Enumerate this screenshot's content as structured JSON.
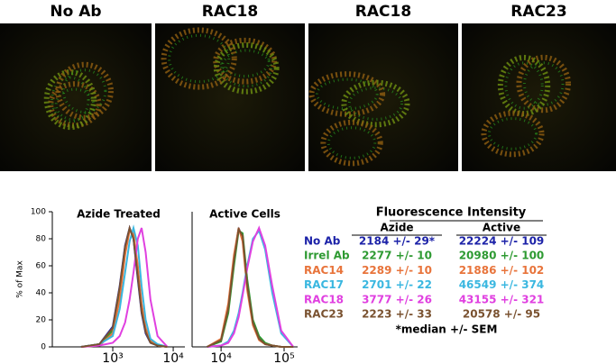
{
  "images": {
    "labels": [
      "No Ab",
      "RAC18",
      "RAC18",
      "RAC23"
    ]
  },
  "chart_data": [
    {
      "type": "line",
      "title": "Azide Treated",
      "ylabel": "% of Max",
      "xscale": "log",
      "x": [
        300,
        600,
        1000,
        1300,
        1600,
        1900,
        2200,
        2600,
        3000,
        3500,
        4200,
        5500,
        8000
      ],
      "xlim": [
        100,
        15600
      ],
      "xticks": [
        {
          "value": 1000,
          "label": "10³"
        },
        {
          "value": 10000,
          "label": "10⁴"
        }
      ],
      "ylim": [
        0,
        100
      ],
      "yticks": [
        0,
        20,
        40,
        60,
        80,
        100
      ],
      "series": [
        {
          "name": "No Ab",
          "color": "#1c22a8",
          "values": [
            0,
            2,
            15,
            45,
            75,
            88,
            80,
            50,
            25,
            10,
            3,
            1,
            0
          ]
        },
        {
          "name": "Irrel Ab",
          "color": "#2e9a32",
          "values": [
            0,
            2,
            12,
            40,
            72,
            87,
            82,
            55,
            28,
            12,
            4,
            1,
            0
          ]
        },
        {
          "name": "RAC14",
          "color": "#e8743b",
          "values": [
            0,
            1,
            10,
            35,
            68,
            86,
            84,
            60,
            32,
            14,
            5,
            1,
            0
          ]
        },
        {
          "name": "RAC17",
          "color": "#3ab7e0",
          "values": [
            0,
            2,
            8,
            28,
            55,
            78,
            88,
            75,
            45,
            20,
            6,
            2,
            0
          ]
        },
        {
          "name": "RAC18",
          "color": "#e040e0",
          "values": [
            0,
            1,
            3,
            8,
            18,
            35,
            55,
            80,
            88,
            70,
            35,
            8,
            0
          ]
        },
        {
          "name": "RAC23",
          "color": "#7a5230",
          "values": [
            0,
            2,
            14,
            44,
            74,
            88,
            80,
            52,
            26,
            11,
            3,
            1,
            0
          ]
        }
      ]
    },
    {
      "type": "line",
      "title": "Active Cells",
      "xscale": "log",
      "x": [
        6000,
        10000,
        13000,
        16000,
        19000,
        22000,
        26000,
        32000,
        40000,
        50000,
        65000,
        90000,
        140000
      ],
      "xlim": [
        3470,
        164000
      ],
      "xticks": [
        {
          "value": 10000,
          "label": "10⁴"
        },
        {
          "value": 100000,
          "label": "10⁵"
        }
      ],
      "ylim": [
        0,
        100
      ],
      "series": [
        {
          "color": "#1c22a8",
          "values": [
            0,
            5,
            30,
            65,
            88,
            80,
            45,
            18,
            6,
            2,
            1,
            0,
            0
          ]
        },
        {
          "color": "#2e9a32",
          "values": [
            0,
            4,
            25,
            60,
            86,
            84,
            50,
            20,
            8,
            3,
            1,
            0,
            0
          ]
        },
        {
          "color": "#e8743b",
          "values": [
            0,
            6,
            32,
            68,
            88,
            78,
            42,
            16,
            5,
            2,
            1,
            0,
            0
          ]
        },
        {
          "color": "#3ab7e0",
          "values": [
            0,
            1,
            4,
            12,
            25,
            40,
            60,
            80,
            86,
            72,
            40,
            10,
            0
          ]
        },
        {
          "color": "#e040e0",
          "values": [
            0,
            1,
            3,
            10,
            22,
            38,
            58,
            78,
            88,
            75,
            45,
            12,
            0
          ]
        },
        {
          "color": "#7a5230",
          "values": [
            0,
            5,
            28,
            64,
            87,
            82,
            46,
            18,
            6,
            2,
            1,
            0,
            0
          ]
        }
      ]
    }
  ],
  "table": {
    "title": "Fluorescence Intensity",
    "columns": [
      "Azide",
      "Active"
    ],
    "rows": [
      [
        "2184 +/- 29*",
        "22224 +/- 109"
      ],
      [
        "2277 +/- 10",
        "20980 +/- 100"
      ],
      [
        "2289 +/- 10",
        "21886 +/- 102"
      ],
      [
        "2701 +/- 22",
        "46549 +/- 374"
      ],
      [
        "3777 +/- 26",
        "43155 +/- 321"
      ],
      [
        "2223 +/- 33",
        "20578 +/- 95"
      ]
    ],
    "footnote": "*median +/- SEM"
  }
}
